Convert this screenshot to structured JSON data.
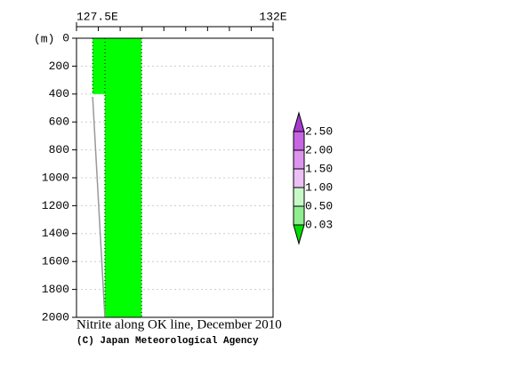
{
  "chart_data": {
    "type": "section",
    "title": "Nitrite along OK line, December 2010",
    "credit": "(C) Japan Meteorological Agency",
    "y_label": "(m)",
    "xlim": [
      127.5,
      132
    ],
    "xticks": [
      {
        "value": 127.5,
        "label": "127.5E"
      },
      {
        "value": 132,
        "label": "132E"
      }
    ],
    "xminor_ticks": [
      128,
      128.5,
      129,
      129.5,
      130,
      130.5,
      131,
      131.5
    ],
    "ylim": [
      0,
      2000
    ],
    "yticks": [
      0,
      200,
      400,
      600,
      800,
      1000,
      1200,
      1400,
      1600,
      1800,
      2000
    ],
    "grid": true,
    "stations": {
      "lon": [
        127.87,
        128.15,
        128.99
      ],
      "cast_depth": [
        400,
        2000,
        2000
      ]
    },
    "fill_color": "#00ff00",
    "seafloor": {
      "lon": [
        127.87,
        128.15
      ],
      "depth": [
        420,
        2000
      ],
      "color": "#999999"
    },
    "levels": [
      0.03,
      {
        "value": 0.5,
        "label": "0.50"
      },
      {
        "value": 1,
        "label": "1.00"
      },
      {
        "value": 1.5,
        "label": "1.50"
      },
      {
        "value": 2,
        "label": "2.00"
      },
      {
        "value": 2.5,
        "label": "2.50"
      }
    ],
    "level_colors": [
      "#00dd00",
      "#90ee90",
      "#c8f8c8",
      "#ecc0f4",
      "#dc94ee",
      "#c666e2",
      "#a83ad4"
    ]
  }
}
